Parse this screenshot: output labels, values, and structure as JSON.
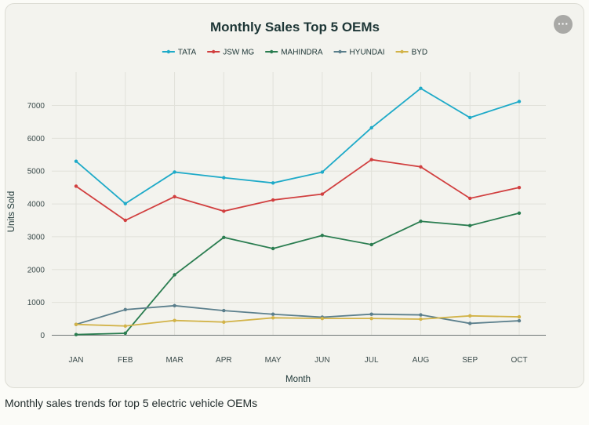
{
  "chart_data": {
    "type": "line",
    "title": "Monthly Sales Top 5 OEMs",
    "xlabel": "Month",
    "ylabel": "Units Sold",
    "categories": [
      "JAN",
      "FEB",
      "MAR",
      "APR",
      "MAY",
      "JUN",
      "JUL",
      "AUG",
      "SEP",
      "OCT"
    ],
    "ylim": [
      0,
      8000
    ],
    "yticks": [
      0,
      1000,
      2000,
      3000,
      4000,
      5000,
      6000,
      7000
    ],
    "grid": true,
    "legend_position": "top-center",
    "series": [
      {
        "name": "TATA",
        "color": "#1eaac8",
        "values": [
          5300,
          4010,
          4970,
          4800,
          4640,
          4970,
          6320,
          7520,
          6630,
          7120
        ]
      },
      {
        "name": "JSW MG",
        "color": "#d13f3f",
        "values": [
          4540,
          3500,
          4220,
          3780,
          4120,
          4300,
          5350,
          5130,
          4170,
          4500
        ]
      },
      {
        "name": "MAHINDRA",
        "color": "#2a7d50",
        "values": [
          20,
          60,
          1840,
          2980,
          2640,
          3040,
          2760,
          3470,
          3340,
          3720
        ]
      },
      {
        "name": "HYUNDAI",
        "color": "#5b7f8c",
        "values": [
          330,
          780,
          900,
          750,
          640,
          550,
          640,
          620,
          360,
          440
        ]
      },
      {
        "name": "BYD",
        "color": "#d2b348",
        "values": [
          330,
          280,
          450,
          400,
          530,
          510,
          510,
          490,
          590,
          560
        ]
      }
    ]
  },
  "ui": {
    "more_button_label": "···",
    "caption": "Monthly sales trends for top 5 electric vehicle OEMs"
  }
}
